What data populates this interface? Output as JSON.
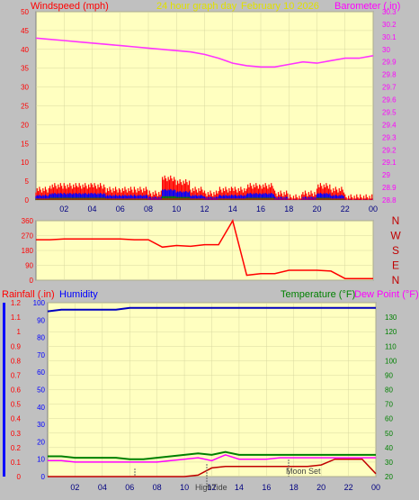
{
  "header": {
    "left": "Windspeed (mph)",
    "center": "24 hour graph day",
    "date": "February 10 2026",
    "right": "Barometer (.in)"
  },
  "x_ticks": [
    "02",
    "04",
    "06",
    "08",
    "10",
    "12",
    "14",
    "16",
    "18",
    "20",
    "22",
    "00"
  ],
  "wind_dir_letters": [
    "N",
    "W",
    "S",
    "E",
    "N"
  ],
  "lower_titles": {
    "rain": "Rainfall (.in)",
    "humidity": "Humidity",
    "temperature": "Temperature (°F)",
    "dewpoint": "Dew Point (°F)"
  },
  "annotations": {
    "high_tide": "HighTide",
    "moon_set": "Moon Set"
  },
  "colors": {
    "panel_bg": "#ffffc0",
    "barometer": "#ff33ff",
    "wind_gust": "#ff0000",
    "wind_avg": "#0000ff",
    "wind_min": "#008000",
    "direction": "#ff0000",
    "humidity": "#0000c0",
    "temperature": "#008000",
    "dewpoint": "#ff00ff",
    "rain": "#c00000",
    "axis_left_top": "#ff0000",
    "axis_right_top": "#ff00ff",
    "axis_rain": "#ff0000",
    "axis_hum": "#0000ff",
    "axis_temp": "#008000"
  },
  "chart_data": [
    {
      "type": "line",
      "title": "24 hour graph day",
      "x": [
        "00",
        "01",
        "02",
        "03",
        "04",
        "05",
        "06",
        "07",
        "08",
        "09",
        "10",
        "11",
        "12",
        "13",
        "14",
        "15",
        "16",
        "17",
        "18",
        "19",
        "20",
        "21",
        "22",
        "23",
        "00"
      ],
      "series": [
        {
          "name": "Barometer (.in)",
          "axis": "right",
          "values": [
            30.09,
            30.08,
            30.07,
            30.06,
            30.05,
            30.04,
            30.03,
            30.02,
            30.01,
            30.0,
            29.99,
            29.98,
            29.96,
            29.93,
            29.89,
            29.87,
            29.86,
            29.86,
            29.88,
            29.9,
            29.89,
            29.91,
            29.93,
            29.93,
            29.95
          ]
        },
        {
          "name": "Windspeed (mph)",
          "axis": "left",
          "values": [
            2,
            3,
            3,
            3,
            3,
            2,
            2,
            2,
            1,
            5,
            4,
            2,
            1,
            2,
            2,
            3,
            3,
            1,
            0,
            1,
            3,
            2,
            0,
            0,
            0
          ]
        }
      ],
      "ylim_left": [
        0,
        50
      ],
      "yticks_left": [
        "0",
        "5",
        "10",
        "15",
        "20",
        "25",
        "30",
        "35",
        "40",
        "45",
        "50"
      ],
      "ylim_right": [
        28.8,
        30.3
      ],
      "yticks_right": [
        "28.8",
        "28.9",
        "29",
        "29.1",
        "29.2",
        "29.3",
        "29.4",
        "29.5",
        "29.6",
        "29.7",
        "29.8",
        "29.9",
        "30",
        "30.1",
        "30.2",
        "30.3"
      ]
    },
    {
      "type": "line",
      "title": "",
      "x": [
        "00",
        "01",
        "02",
        "03",
        "04",
        "05",
        "06",
        "07",
        "08",
        "09",
        "10",
        "11",
        "12",
        "13",
        "14",
        "15",
        "16",
        "17",
        "18",
        "19",
        "20",
        "21",
        "22",
        "23",
        "00"
      ],
      "series": [
        {
          "name": "",
          "values": [
            245,
            245,
            250,
            250,
            250,
            250,
            250,
            245,
            245,
            200,
            210,
            205,
            215,
            215,
            360,
            30,
            40,
            40,
            60,
            60,
            60,
            55,
            10,
            10,
            10
          ]
        }
      ],
      "ylim": [
        0,
        360
      ],
      "yticks": [
        "0",
        "90",
        "180",
        "270",
        "360"
      ]
    },
    {
      "type": "line",
      "title": "",
      "x": [
        "00",
        "01",
        "02",
        "03",
        "04",
        "05",
        "06",
        "07",
        "08",
        "09",
        "10",
        "11",
        "12",
        "13",
        "14",
        "15",
        "16",
        "17",
        "18",
        "19",
        "20",
        "21",
        "22",
        "23",
        "00"
      ],
      "series": [
        {
          "name": "Humidity",
          "axis": "left2",
          "values": [
            95,
            96,
            96,
            96,
            96,
            96,
            97,
            97,
            97,
            97,
            97,
            97,
            97,
            97,
            97,
            97,
            97,
            97,
            97,
            97,
            97,
            97,
            97,
            97,
            97
          ]
        },
        {
          "name": "Temperature (°F)",
          "axis": "right",
          "values": [
            34,
            34,
            33,
            33,
            33,
            33,
            32,
            32,
            33,
            34,
            35,
            36,
            35,
            37,
            35,
            35,
            35,
            35,
            35,
            35,
            35,
            35,
            35,
            35,
            35
          ]
        },
        {
          "name": "Dew Point (°F)",
          "axis": "right",
          "values": [
            31,
            31,
            30,
            30,
            30,
            30,
            30,
            30,
            30,
            31,
            32,
            33,
            31,
            35,
            32,
            32,
            32,
            33,
            33,
            33,
            33,
            33,
            33,
            33,
            33
          ]
        },
        {
          "name": "Rainfall (.in)",
          "axis": "left",
          "values": [
            0,
            0,
            0,
            0,
            0,
            0,
            0,
            0,
            0,
            0,
            0,
            0.01,
            0.06,
            0.07,
            0.07,
            0.07,
            0.07,
            0.07,
            0.07,
            0.07,
            0.08,
            0.12,
            0.12,
            0.12,
            0.02
          ]
        }
      ],
      "ylim_left": [
        0,
        1.2
      ],
      "yticks_left": [
        "0",
        "0.1",
        "0.2",
        "0.3",
        "0.4",
        "0.5",
        "0.6",
        "0.7",
        "0.8",
        "0.9",
        "1",
        "1.1",
        "1.2"
      ],
      "ylim_left2": [
        0,
        100
      ],
      "yticks_left2": [
        "0",
        "10",
        "20",
        "30",
        "40",
        "50",
        "60",
        "70",
        "80",
        "90",
        "100"
      ],
      "ylim_right": [
        20,
        140
      ],
      "yticks_right": [
        "20",
        "30",
        "40",
        "50",
        "60",
        "70",
        "80",
        "90",
        "100",
        "110",
        "120",
        "130"
      ]
    }
  ]
}
